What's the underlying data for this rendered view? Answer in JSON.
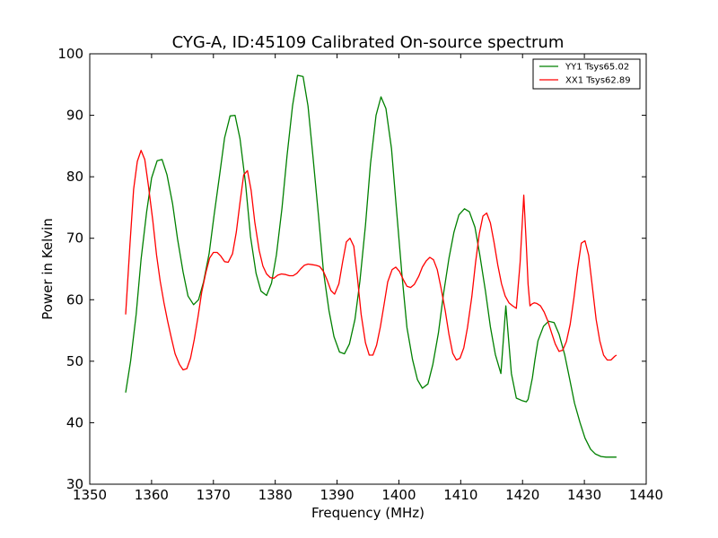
{
  "chart_data": {
    "type": "line",
    "title": "CYG-A, ID:45109 Calibrated On-source spectrum",
    "xlabel": "Frequency (MHz)",
    "ylabel": "Power in Kelvin",
    "xlim": [
      1350,
      1440
    ],
    "ylim": [
      30,
      100
    ],
    "x_ticks": [
      "1350",
      "1360",
      "1370",
      "1380",
      "1390",
      "1400",
      "1410",
      "1420",
      "1430",
      "1440"
    ],
    "y_ticks": [
      "30",
      "40",
      "50",
      "60",
      "70",
      "80",
      "90",
      "100"
    ],
    "grid": false,
    "legend_position": "top-right",
    "series": [
      {
        "name": "YY1 Tsys65.02",
        "color": "#008000",
        "x": [
          1355.8,
          1356.6,
          1357.5,
          1358.3,
          1359.2,
          1360.0,
          1360.9,
          1361.7,
          1362.5,
          1363.4,
          1364.2,
          1365.1,
          1365.9,
          1366.8,
          1367.6,
          1368.4,
          1369.3,
          1370.1,
          1371.0,
          1371.8,
          1372.7,
          1373.5,
          1374.3,
          1375.2,
          1376.0,
          1376.9,
          1377.7,
          1378.6,
          1379.4,
          1380.2,
          1381.1,
          1381.9,
          1382.8,
          1383.6,
          1384.5,
          1385.3,
          1386.1,
          1387.0,
          1387.8,
          1388.7,
          1389.5,
          1390.4,
          1391.2,
          1392.0,
          1392.9,
          1393.7,
          1394.6,
          1395.4,
          1396.3,
          1397.1,
          1397.9,
          1398.8,
          1399.6,
          1400.5,
          1401.3,
          1402.2,
          1403.0,
          1403.8,
          1404.7,
          1405.5,
          1406.4,
          1407.2,
          1408.1,
          1408.9,
          1409.7,
          1410.6,
          1411.4,
          1412.3,
          1413.1,
          1414.0,
          1414.8,
          1415.6,
          1416.5,
          1417.3,
          1418.2,
          1419.0,
          1419.9,
          1420.6,
          1420.9,
          1421.2,
          1421.6,
          1422.0,
          1422.5,
          1423.4,
          1424.2,
          1425.1,
          1425.9,
          1426.8,
          1427.6,
          1428.4,
          1429.3,
          1430.1,
          1431.0,
          1431.8,
          1432.7,
          1433.5,
          1434.3,
          1435.2
        ],
        "values": [
          44.9,
          50.0,
          57.6,
          66.6,
          74.3,
          79.8,
          82.6,
          82.8,
          80.3,
          75.6,
          69.9,
          64.5,
          60.6,
          59.2,
          60.0,
          62.9,
          67.5,
          73.7,
          80.3,
          86.3,
          89.9,
          90.0,
          86.2,
          78.9,
          70.3,
          64.3,
          61.4,
          60.7,
          62.7,
          67.3,
          74.9,
          83.4,
          91.6,
          96.5,
          96.3,
          91.5,
          83.3,
          73.6,
          64.6,
          58.2,
          54.0,
          51.5,
          51.2,
          52.8,
          56.8,
          63.0,
          72.1,
          82.1,
          90.0,
          93.0,
          91.1,
          84.6,
          74.8,
          64.0,
          55.5,
          50.3,
          47.0,
          45.6,
          46.3,
          49.5,
          54.6,
          60.8,
          66.7,
          71.0,
          73.8,
          74.8,
          74.3,
          71.8,
          67.2,
          61.4,
          55.6,
          51.1,
          48.0,
          59.0,
          48.0,
          44.0,
          43.6,
          43.4,
          43.8,
          45.3,
          47.3,
          50.2,
          53.3,
          55.7,
          56.5,
          56.3,
          54.4,
          51.1,
          47.2,
          43.2,
          40.0,
          37.5,
          35.7,
          34.9,
          34.5,
          34.4,
          34.4,
          34.4
        ]
      },
      {
        "name": "XX1 Tsys62.89",
        "color": "#ff0000",
        "x": [
          1355.8,
          1356.5,
          1357.1,
          1357.7,
          1358.3,
          1358.9,
          1359.5,
          1360.2,
          1360.8,
          1361.4,
          1362.0,
          1362.6,
          1363.2,
          1363.8,
          1364.5,
          1365.1,
          1365.7,
          1366.3,
          1366.9,
          1367.5,
          1368.1,
          1368.8,
          1369.4,
          1370.0,
          1370.6,
          1371.2,
          1371.8,
          1372.4,
          1373.1,
          1373.7,
          1374.3,
          1374.9,
          1375.5,
          1376.1,
          1376.7,
          1377.4,
          1378.0,
          1378.6,
          1379.2,
          1379.8,
          1380.4,
          1381.0,
          1381.7,
          1382.3,
          1382.9,
          1383.5,
          1384.1,
          1384.7,
          1385.3,
          1386.0,
          1386.6,
          1387.2,
          1387.8,
          1388.4,
          1389.0,
          1389.6,
          1390.3,
          1390.9,
          1391.5,
          1392.1,
          1392.7,
          1393.3,
          1393.9,
          1394.6,
          1395.2,
          1395.8,
          1396.4,
          1397.0,
          1397.6,
          1398.2,
          1398.9,
          1399.5,
          1400.1,
          1400.7,
          1401.3,
          1401.9,
          1402.5,
          1403.2,
          1403.8,
          1404.4,
          1405.0,
          1405.6,
          1406.2,
          1406.8,
          1407.5,
          1408.1,
          1408.7,
          1409.3,
          1409.9,
          1410.5,
          1411.1,
          1411.8,
          1412.4,
          1413.0,
          1413.6,
          1414.2,
          1414.8,
          1415.4,
          1416.0,
          1416.6,
          1417.2,
          1417.8,
          1418.4,
          1419.0,
          1419.6,
          1420.2,
          1420.6,
          1420.9,
          1421.2,
          1421.5,
          1421.9,
          1422.3,
          1422.9,
          1423.5,
          1424.1,
          1424.7,
          1425.3,
          1425.9,
          1426.5,
          1427.1,
          1427.7,
          1428.3,
          1428.9,
          1429.5,
          1430.1,
          1430.7,
          1431.3,
          1431.9,
          1432.5,
          1433.1,
          1433.7,
          1434.3,
          1434.9,
          1435.2
        ],
        "values": [
          57.6,
          69.0,
          78.0,
          82.5,
          84.3,
          82.8,
          78.5,
          72.8,
          67.3,
          63.0,
          59.5,
          56.5,
          53.8,
          51.2,
          49.5,
          48.6,
          48.8,
          50.5,
          53.5,
          57.2,
          61.2,
          64.5,
          66.8,
          67.7,
          67.7,
          67.1,
          66.2,
          66.1,
          67.5,
          71.0,
          75.8,
          80.3,
          81.0,
          77.8,
          72.6,
          68.0,
          65.5,
          64.2,
          63.6,
          63.5,
          64.0,
          64.2,
          64.1,
          63.9,
          63.9,
          64.3,
          65.0,
          65.6,
          65.8,
          65.7,
          65.6,
          65.4,
          64.6,
          63.2,
          61.5,
          60.9,
          62.6,
          66.2,
          69.4,
          70.0,
          68.7,
          63.5,
          57.6,
          53.0,
          51.0,
          51.0,
          52.6,
          55.6,
          59.2,
          62.9,
          64.9,
          65.3,
          64.6,
          63.3,
          62.2,
          62.0,
          62.5,
          63.8,
          65.3,
          66.3,
          66.9,
          66.5,
          64.9,
          62.0,
          58.2,
          54.4,
          51.3,
          50.2,
          50.5,
          52.2,
          55.5,
          60.5,
          66.1,
          70.7,
          73.6,
          74.1,
          72.5,
          69.3,
          65.6,
          62.6,
          60.6,
          59.5,
          59.0,
          58.6,
          66.0,
          77.0,
          69.0,
          62.5,
          59.0,
          59.3,
          59.5,
          59.4,
          59.0,
          58.0,
          56.5,
          54.6,
          52.8,
          51.6,
          51.8,
          53.2,
          56.0,
          60.2,
          65.0,
          69.2,
          69.6,
          67.2,
          62.0,
          56.8,
          53.3,
          51.0,
          50.2,
          50.2,
          50.8,
          51.0
        ]
      }
    ]
  }
}
